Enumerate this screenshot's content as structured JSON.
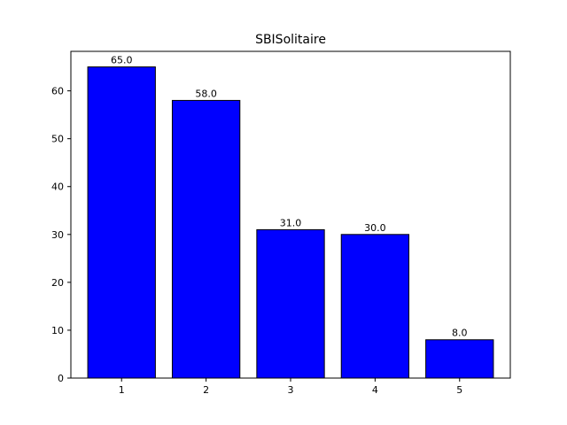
{
  "chart_data": {
    "type": "bar",
    "title": "SBISolitaire",
    "xlabel": "",
    "ylabel": "",
    "categories": [
      "1",
      "2",
      "3",
      "4",
      "5"
    ],
    "values": [
      65.0,
      58.0,
      31.0,
      30.0,
      8.0
    ],
    "data_labels": [
      "65.0",
      "58.0",
      "31.0",
      "30.0",
      "8.0"
    ],
    "yticks": [
      0,
      10,
      20,
      30,
      40,
      50,
      60
    ],
    "ylim": [
      0,
      68.25
    ],
    "bar_color": "#0000ff",
    "bar_edge_color": "#000000",
    "grid": false,
    "legend": "none"
  }
}
